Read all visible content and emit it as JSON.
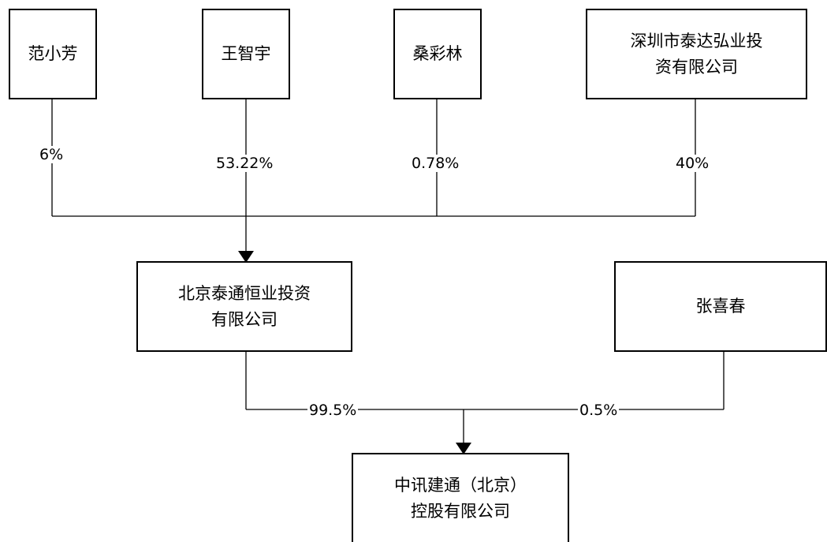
{
  "nodes": {
    "fan": "范小芳",
    "wang": "王智宇",
    "sang": "桑彩林",
    "shenzhen": "深圳市泰达弘业投\n资有限公司",
    "beijing_tt": "北京泰通恒业投资\n有限公司",
    "zhang": "张喜春",
    "company": "中讯建通（北京）\n控股有限公司"
  },
  "edges": {
    "fan_pct": "6%",
    "wang_pct": "53.22%",
    "sang_pct": "0.78%",
    "shenzhen_pct": "40%",
    "beijing_pct": "99.5%",
    "zhang_pct": "0.5%"
  },
  "colors": {
    "line": "#000000",
    "fill": "#ffffff"
  }
}
